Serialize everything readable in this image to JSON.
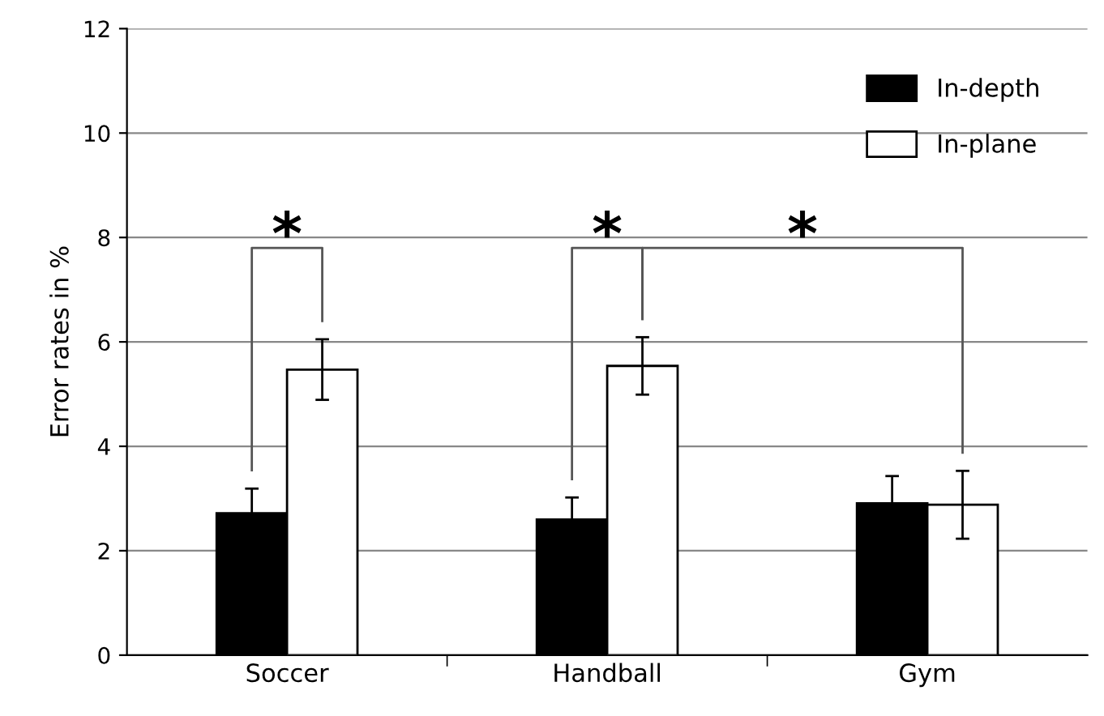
{
  "chart_data": {
    "type": "bar",
    "ylabel": "Error rates in %",
    "categories": [
      "Soccer",
      "Handball",
      "Gym"
    ],
    "series": [
      {
        "name": "In-depth",
        "color": "#000000",
        "values": [
          2.72,
          2.6,
          2.91
        ],
        "errors": [
          0.47,
          0.42,
          0.52
        ]
      },
      {
        "name": "In-plane",
        "color": "#ffffff",
        "values": [
          5.47,
          5.54,
          2.88
        ],
        "errors": [
          0.58,
          0.55,
          0.65
        ]
      }
    ],
    "ylim": [
      0,
      12
    ],
    "yticks": [
      0,
      2,
      4,
      6,
      8,
      10,
      12
    ],
    "grid": "y",
    "legend": "top right",
    "annotations": [
      "*",
      "*",
      "*"
    ]
  }
}
